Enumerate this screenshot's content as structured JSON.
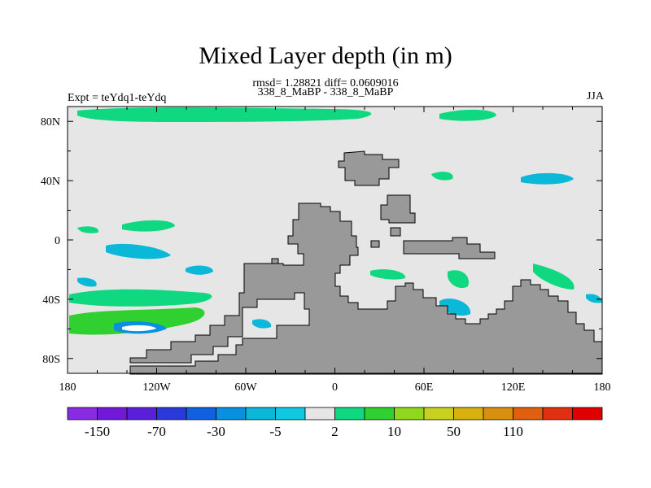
{
  "title": "Mixed Layer depth (in m)",
  "stats_line": "rmsd= 1.28821 diff= 0.0609016",
  "subtitle": "338_8_MaBP - 338_8_MaBP",
  "left_label": "Expt = teYdq1-teYdq",
  "right_label": "JJA",
  "map": {
    "lon_range": [
      -180,
      180
    ],
    "lat_range": [
      -90,
      90
    ],
    "x_ticks": [
      {
        "value": -180,
        "label": "180"
      },
      {
        "value": -120,
        "label": "120W"
      },
      {
        "value": -60,
        "label": "60W"
      },
      {
        "value": 0,
        "label": "0"
      },
      {
        "value": 60,
        "label": "60E"
      },
      {
        "value": 120,
        "label": "120E"
      },
      {
        "value": 180,
        "label": "180"
      }
    ],
    "y_ticks": [
      {
        "value": 80,
        "label": "80N"
      },
      {
        "value": 40,
        "label": "40N"
      },
      {
        "value": 0,
        "label": "0"
      },
      {
        "value": -40,
        "label": "40S"
      },
      {
        "value": -80,
        "label": "80S"
      }
    ],
    "ocean_color": "#e6e6e6",
    "land_color": "#999999"
  },
  "colorbar": {
    "colors": [
      "#8a2be2",
      "#7418d8",
      "#5a20d8",
      "#2a3ad8",
      "#1060e0",
      "#0a90e0",
      "#0cb8d8",
      "#10c8e0",
      "#e6e6e6",
      "#10d880",
      "#30d030",
      "#90d820",
      "#c8d020",
      "#d8b010",
      "#d89010",
      "#e06010",
      "#e03010",
      "#e00000"
    ],
    "labels": [
      "-150",
      "-70",
      "-30",
      "-5",
      "2",
      "10",
      "50",
      "110"
    ]
  }
}
